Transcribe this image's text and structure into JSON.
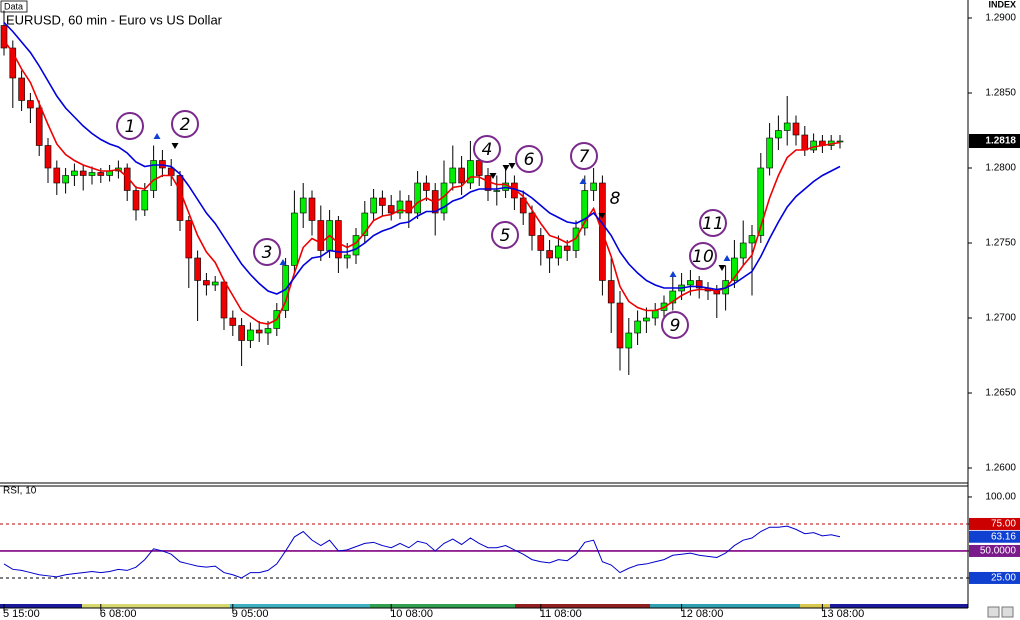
{
  "chart_data": [
    {
      "type": "candlestick",
      "title": "EURUSD, 60 min - Euro vs US Dollar",
      "badge": "Data",
      "axis_label": "INDEX",
      "categories": [
        "5 15:00",
        null,
        null,
        null,
        null,
        null,
        null,
        null,
        null,
        null,
        null,
        "6 08:00",
        null,
        null,
        null,
        null,
        null,
        null,
        null,
        null,
        null,
        null,
        null,
        null,
        null,
        null,
        "9 05:00",
        null,
        null,
        null,
        null,
        null,
        null,
        null,
        null,
        null,
        null,
        null,
        null,
        null,
        null,
        null,
        null,
        null,
        "10 08:00",
        null,
        null,
        null,
        null,
        null,
        null,
        null,
        null,
        null,
        null,
        null,
        null,
        null,
        null,
        null,
        null,
        "11 08:00",
        null,
        null,
        null,
        null,
        null,
        null,
        null,
        null,
        null,
        null,
        null,
        null,
        null,
        null,
        null,
        "12 08:00",
        null,
        null,
        null,
        null,
        null,
        null,
        null,
        null,
        null,
        null,
        null,
        null,
        null,
        null,
        null,
        "13 08:00",
        null,
        null
      ],
      "open": [
        1.2895,
        1.288,
        1.286,
        1.2845,
        1.284,
        1.2815,
        1.28,
        1.279,
        1.2795,
        1.2798,
        1.2795,
        1.2797,
        1.2795,
        1.2798,
        1.28,
        1.2785,
        1.2772,
        1.2785,
        1.2805,
        1.28,
        1.2795,
        1.2765,
        1.274,
        1.2725,
        1.2722,
        1.2724,
        1.27,
        1.2695,
        1.2685,
        1.2692,
        1.269,
        1.2693,
        1.2705,
        1.2735,
        1.277,
        1.278,
        1.2765,
        1.2745,
        1.2765,
        1.274,
        1.2742,
        1.2755,
        1.277,
        1.278,
        1.2775,
        1.277,
        1.2778,
        1.277,
        1.279,
        1.2785,
        1.277,
        1.279,
        1.28,
        1.279,
        1.2805,
        1.2795,
        1.2785,
        1.2785,
        1.279,
        1.278,
        1.277,
        1.2755,
        1.2745,
        1.274,
        1.2748,
        1.2745,
        1.276,
        1.2785,
        1.279,
        1.2725,
        1.271,
        1.268,
        1.269,
        1.2698,
        1.27,
        1.2705,
        1.271,
        1.2718,
        1.2722,
        1.2725,
        1.272,
        1.2718,
        1.2716,
        1.2725,
        1.274,
        1.275,
        1.2755,
        1.28,
        1.282,
        1.2825,
        1.283,
        1.2822,
        1.2812,
        1.2818,
        1.2815,
        1.2818
      ],
      "high": [
        1.2905,
        1.2885,
        1.2865,
        1.285,
        1.2845,
        1.282,
        1.2805,
        1.28,
        1.2803,
        1.2802,
        1.2801,
        1.28,
        1.2802,
        1.2805,
        1.2803,
        1.2788,
        1.279,
        1.2815,
        1.2812,
        1.2806,
        1.2798,
        1.2768,
        1.2745,
        1.273,
        1.2728,
        1.2726,
        1.2705,
        1.27,
        1.2697,
        1.2698,
        1.2698,
        1.271,
        1.274,
        1.2785,
        1.279,
        1.2785,
        1.2775,
        1.2772,
        1.2768,
        1.275,
        1.276,
        1.2778,
        1.2786,
        1.2785,
        1.2782,
        1.2785,
        1.2782,
        1.2798,
        1.2795,
        1.279,
        1.2805,
        1.2815,
        1.2808,
        1.2818,
        1.281,
        1.28,
        1.2795,
        1.28,
        1.2795,
        1.2785,
        1.2775,
        1.276,
        1.2752,
        1.2755,
        1.2752,
        1.2765,
        1.2795,
        1.28,
        1.2795,
        1.274,
        1.2718,
        1.27,
        1.2705,
        1.2707,
        1.271,
        1.2715,
        1.273,
        1.273,
        1.2732,
        1.2728,
        1.2724,
        1.2722,
        1.2735,
        1.2752,
        1.2765,
        1.2762,
        1.281,
        1.283,
        1.2835,
        1.2848,
        1.2835,
        1.2828,
        1.2823,
        1.2822,
        1.2822,
        1.2822
      ],
      "low": [
        1.2875,
        1.284,
        1.2838,
        1.283,
        1.2808,
        1.279,
        1.2782,
        1.2783,
        1.2788,
        1.2785,
        1.2789,
        1.279,
        1.2791,
        1.2793,
        1.2778,
        1.2765,
        1.2768,
        1.278,
        1.2794,
        1.2788,
        1.2758,
        1.272,
        1.2698,
        1.2715,
        1.2718,
        1.2692,
        1.2688,
        1.2668,
        1.268,
        1.2684,
        1.2682,
        1.2688,
        1.27,
        1.273,
        1.276,
        1.2755,
        1.2738,
        1.274,
        1.273,
        1.2733,
        1.2736,
        1.275,
        1.2765,
        1.2768,
        1.2765,
        1.2766,
        1.276,
        1.2766,
        1.2778,
        1.2755,
        1.2765,
        1.2785,
        1.2782,
        1.2786,
        1.2788,
        1.2778,
        1.2775,
        1.278,
        1.2772,
        1.2762,
        1.2745,
        1.2735,
        1.273,
        1.2735,
        1.2738,
        1.274,
        1.2755,
        1.2778,
        1.2715,
        1.269,
        1.2665,
        1.2662,
        1.2682,
        1.269,
        1.2695,
        1.27,
        1.2705,
        1.2712,
        1.2715,
        1.2713,
        1.2712,
        1.27,
        1.2705,
        1.272,
        1.2735,
        1.2715,
        1.275,
        1.2795,
        1.2812,
        1.2815,
        1.2815,
        1.2808,
        1.281,
        1.281,
        1.2812,
        1.2813
      ],
      "close": [
        1.288,
        1.286,
        1.2845,
        1.284,
        1.2815,
        1.28,
        1.279,
        1.2795,
        1.2798,
        1.2795,
        1.2797,
        1.2795,
        1.2798,
        1.28,
        1.2785,
        1.2772,
        1.2785,
        1.2805,
        1.28,
        1.2795,
        1.2765,
        1.274,
        1.2725,
        1.2722,
        1.2724,
        1.27,
        1.2695,
        1.2685,
        1.2692,
        1.269,
        1.2693,
        1.2705,
        1.2735,
        1.277,
        1.278,
        1.2765,
        1.2745,
        1.2765,
        1.274,
        1.2742,
        1.2755,
        1.277,
        1.278,
        1.2775,
        1.277,
        1.2778,
        1.277,
        1.279,
        1.2785,
        1.277,
        1.279,
        1.28,
        1.279,
        1.2805,
        1.2795,
        1.2785,
        1.2785,
        1.279,
        1.278,
        1.277,
        1.2755,
        1.2745,
        1.274,
        1.2748,
        1.2745,
        1.276,
        1.2785,
        1.279,
        1.2725,
        1.271,
        1.268,
        1.269,
        1.2698,
        1.27,
        1.2705,
        1.271,
        1.2718,
        1.2722,
        1.2725,
        1.272,
        1.2718,
        1.2716,
        1.2725,
        1.274,
        1.275,
        1.2755,
        1.28,
        1.282,
        1.2825,
        1.283,
        1.2822,
        1.2812,
        1.2818,
        1.2815,
        1.2818,
        1.2818
      ],
      "up_color": "#00ee00",
      "down_color": "#ee0000",
      "series": [
        {
          "color": "#ee0000",
          "values": [
            1.2885,
            1.2877,
            1.2866,
            1.2857,
            1.2843,
            1.2829,
            1.2816,
            1.2809,
            1.2805,
            1.2802,
            1.28,
            1.2798,
            1.2798,
            1.2799,
            1.2794,
            1.2787,
            1.2786,
            1.2792,
            1.2795,
            1.2795,
            1.2785,
            1.277,
            1.2755,
            1.2744,
            1.2737,
            1.2725,
            1.2715,
            1.2705,
            1.2701,
            1.2697,
            1.2696,
            1.2699,
            1.2711,
            1.273,
            1.2747,
            1.2753,
            1.275,
            1.2755,
            1.275,
            1.2747,
            1.275,
            1.2757,
            1.2765,
            1.2768,
            1.2769,
            1.2772,
            1.2771,
            1.2777,
            1.278,
            1.2777,
            1.2781,
            1.2787,
            1.2788,
            1.2794,
            1.2794,
            1.2791,
            1.2789,
            1.2789,
            1.2786,
            1.2781,
            1.2772,
            1.2763,
            1.2755,
            1.2753,
            1.275,
            1.2753,
            1.2764,
            1.2773,
            1.2757,
            1.2741,
            1.2721,
            1.2711,
            1.2707,
            1.2705,
            1.2705,
            1.2707,
            1.2711,
            1.2715,
            1.2718,
            1.2719,
            1.2719,
            1.2718,
            1.272,
            1.2727,
            1.2735,
            1.2742,
            1.2761,
            1.278,
            1.2795,
            1.2807,
            1.2812,
            1.2812,
            1.2814,
            1.2815,
            1.2816,
            1.2817
          ]
        },
        {
          "color": "#0000dd",
          "values": [
            1.2897,
            1.2891,
            1.2884,
            1.2877,
            1.2868,
            1.2858,
            1.2848,
            1.284,
            1.2834,
            1.2828,
            1.2823,
            1.2819,
            1.2816,
            1.2814,
            1.281,
            1.2804,
            1.2801,
            1.2802,
            1.2802,
            1.2801,
            1.2796,
            1.2788,
            1.2779,
            1.277,
            1.2763,
            1.2754,
            1.2745,
            1.2736,
            1.2729,
            1.2723,
            1.2718,
            1.2716,
            1.2719,
            1.2727,
            1.2735,
            1.274,
            1.2741,
            1.2745,
            1.2744,
            1.2744,
            1.2746,
            1.275,
            1.2755,
            1.2758,
            1.276,
            1.2763,
            1.2764,
            1.2768,
            1.2771,
            1.2771,
            1.2774,
            1.2778,
            1.278,
            1.2784,
            1.2786,
            1.2786,
            1.2786,
            1.2787,
            1.2786,
            1.2784,
            1.278,
            1.2775,
            1.277,
            1.2767,
            1.2764,
            1.2763,
            1.2766,
            1.277,
            1.2763,
            1.2755,
            1.2744,
            1.2736,
            1.273,
            1.2725,
            1.2722,
            1.272,
            1.272,
            1.272,
            1.2721,
            1.2721,
            1.272,
            1.2719,
            1.272,
            1.2723,
            1.2727,
            1.2731,
            1.2741,
            1.2753,
            1.2764,
            1.2774,
            1.2781,
            1.2786,
            1.2791,
            1.2795,
            1.2798,
            1.2801
          ]
        }
      ],
      "ylim": [
        1.259,
        1.2912
      ],
      "yticks": [
        {
          "value": 1.29,
          "label": "1.2900"
        },
        {
          "value": 1.285,
          "label": "1.2850"
        },
        {
          "value": 1.28,
          "label": "1.2800"
        },
        {
          "value": 1.275,
          "label": "1.2750"
        },
        {
          "value": 1.27,
          "label": "1.2700"
        },
        {
          "value": 1.265,
          "label": "1.2650"
        },
        {
          "value": 1.26,
          "label": "1.2600"
        }
      ],
      "annotations": [
        "1",
        "2",
        "3",
        "4",
        "5",
        "6",
        "7",
        "8",
        "9",
        "10",
        "11"
      ]
    },
    {
      "type": "line",
      "title": "RSI, 10",
      "color": "#0000cc",
      "values": [
        38,
        33,
        32,
        30,
        28,
        27,
        26,
        28,
        29,
        30,
        31,
        30,
        31,
        33,
        32,
        35,
        42,
        52,
        50,
        47,
        40,
        38,
        36,
        35,
        36,
        30,
        28,
        25,
        30,
        30,
        32,
        38,
        50,
        63,
        68,
        60,
        55,
        60,
        50,
        51,
        54,
        57,
        58,
        55,
        53,
        57,
        53,
        59,
        57,
        50,
        57,
        61,
        56,
        62,
        57,
        53,
        53,
        55,
        51,
        47,
        42,
        40,
        39,
        42,
        41,
        47,
        58,
        60,
        40,
        37,
        30,
        34,
        37,
        38,
        40,
        42,
        46,
        47,
        48,
        46,
        45,
        44,
        48,
        55,
        60,
        62,
        68,
        72,
        72,
        73,
        70,
        66,
        67,
        64,
        65,
        63.16
      ],
      "ylim": [
        0.9,
        112
      ],
      "yticks": [
        {
          "value": 100,
          "label": "100.00"
        },
        {
          "value": 75,
          "label": "75.00"
        },
        {
          "value": 50,
          "label": "50.0000"
        },
        {
          "value": 25,
          "label": "25.00"
        }
      ]
    }
  ]
}
